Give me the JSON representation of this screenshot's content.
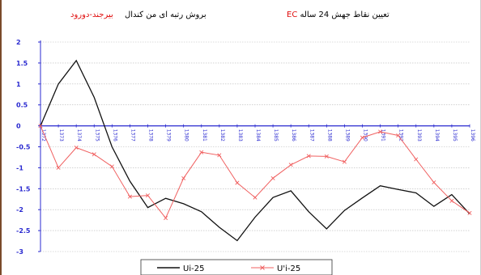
{
  "header": {
    "title_prefix": "تعیین نقاط جهش 24 ساله",
    "title_ec": "EC",
    "method": "بروش رتبه ای من کندال",
    "region": "بیرجند-دورود"
  },
  "colors": {
    "ui_line": "#111111",
    "uprime_line": "#f06060",
    "axis": "#2a2ad0",
    "grid": "#b8b8b8"
  },
  "chart_data": {
    "type": "line",
    "title": "",
    "xlabel": "",
    "ylabel": "",
    "ylim": [
      -3,
      2
    ],
    "yticks": [
      2,
      1.5,
      1,
      0.5,
      0,
      -0.5,
      -1,
      -1.5,
      -2,
      -2.5,
      -3
    ],
    "grid": true,
    "legend_position": "bottom",
    "categories": [
      "1372",
      "1373",
      "1374",
      "1375",
      "1376",
      "1377",
      "1378",
      "1379",
      "1380",
      "1381",
      "1382",
      "1383",
      "1384",
      "1385",
      "1386",
      "1387",
      "1388",
      "1389",
      "1390",
      "1391",
      "1392",
      "1393",
      "1394",
      "1395",
      "1396"
    ],
    "series": [
      {
        "name": "Ui-25",
        "marker": "none",
        "values": [
          0,
          1.0,
          1.56,
          0.68,
          -0.5,
          -1.32,
          -1.95,
          -1.73,
          -1.86,
          -2.05,
          -2.42,
          -2.74,
          -2.18,
          -1.71,
          -1.55,
          -2.05,
          -2.46,
          -2.02,
          -1.72,
          -1.43,
          -1.52,
          -1.6,
          -1.92,
          -1.64,
          -2.1
        ]
      },
      {
        "name": "U'i-25",
        "marker": "x",
        "values": [
          0,
          -1.0,
          -0.52,
          -0.68,
          -0.97,
          -1.69,
          -1.66,
          -2.2,
          -1.25,
          -0.63,
          -0.7,
          -1.36,
          -1.71,
          -1.25,
          -0.93,
          -0.72,
          -0.73,
          -0.86,
          -0.28,
          -0.14,
          -0.23,
          -0.8,
          -1.35,
          -1.79,
          -2.08
        ]
      }
    ]
  }
}
